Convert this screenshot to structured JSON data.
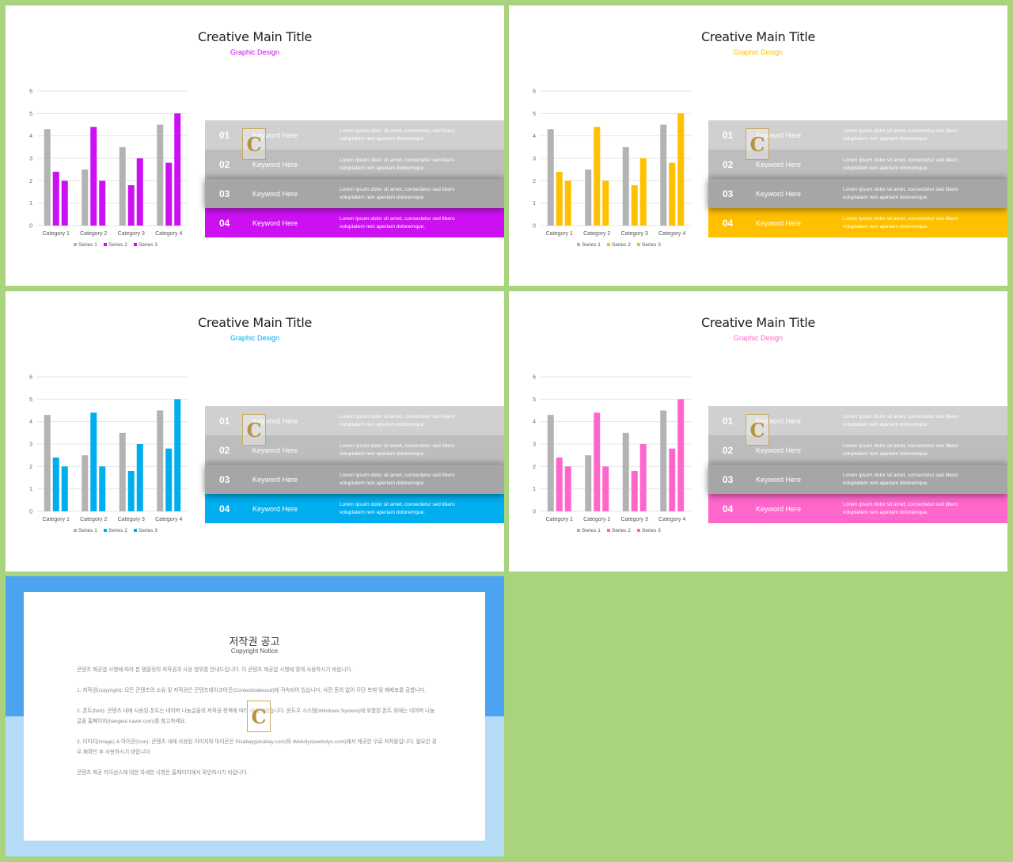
{
  "slides": [
    {
      "title": "Creative Main Title",
      "subtitle": "Graphic Design",
      "accent": "#cc10f2",
      "bands": [
        {
          "num": "01",
          "keyword": "Keyword Here",
          "desc1": "Lorem ipsum dolor sit amet, consectetur sed libero",
          "desc2": "voluptatem rem aperiam doloremque."
        },
        {
          "num": "02",
          "keyword": "Keyword Here",
          "desc1": "Lorem ipsum dolor sit amet, consectetur sed libero",
          "desc2": "voluptatem rem aperiam doloremque."
        },
        {
          "num": "03",
          "keyword": "Keyword Here",
          "desc1": "Lorem ipsum dolor sit amet, consectetur sed libero",
          "desc2": "voluptatem rem aperiam doloremque."
        },
        {
          "num": "04",
          "keyword": "Keyword Here",
          "desc1": "Lorem ipsum dolor sit amet, consectetur sed libero",
          "desc2": "voluptatem rem aperiam doloremque."
        }
      ]
    },
    {
      "title": "Creative Main Title",
      "subtitle": "Graphic Design",
      "accent": "#ffc000",
      "bands": [
        {
          "num": "01",
          "keyword": "Keyword Here",
          "desc1": "Lorem ipsum dolor sit amet, consectetur sed libero",
          "desc2": "voluptatem rem aperiam doloremque."
        },
        {
          "num": "02",
          "keyword": "Keyword Here",
          "desc1": "Lorem ipsum dolor sit amet, consectetur sed libero",
          "desc2": "voluptatem rem aperiam doloremque."
        },
        {
          "num": "03",
          "keyword": "Keyword Here",
          "desc1": "Lorem ipsum dolor sit amet, consectetur sed libero",
          "desc2": "voluptatem rem aperiam doloremque."
        },
        {
          "num": "04",
          "keyword": "Keyword Here",
          "desc1": "Lorem ipsum dolor sit amet, consectetur sed libero",
          "desc2": "voluptatem rem aperiam doloremque."
        }
      ]
    },
    {
      "title": "Creative Main Title",
      "subtitle": "Graphic Design",
      "accent": "#00aeef",
      "bands": [
        {
          "num": "01",
          "keyword": "Keyword Here",
          "desc1": "Lorem ipsum dolor sit amet, consectetur sed libero",
          "desc2": "voluptatem rem aperiam doloremque."
        },
        {
          "num": "02",
          "keyword": "Keyword Here",
          "desc1": "Lorem ipsum dolor sit amet, consectetur sed libero",
          "desc2": "voluptatem rem aperiam doloremque."
        },
        {
          "num": "03",
          "keyword": "Keyword Here",
          "desc1": "Lorem ipsum dolor sit amet, consectetur sed libero",
          "desc2": "voluptatem rem aperiam doloremque."
        },
        {
          "num": "04",
          "keyword": "Keyword Here",
          "desc1": "Lorem ipsum dolor sit amet, consectetur sed libero",
          "desc2": "voluptatem rem aperiam doloremque."
        }
      ]
    },
    {
      "title": "Creative Main Title",
      "subtitle": "Graphic Design",
      "accent": "#ff66cc",
      "bands": [
        {
          "num": "01",
          "keyword": "Keyword Here",
          "desc1": "Lorem ipsum dolor sit amet, consectetur sed libero",
          "desc2": "voluptatem rem aperiam doloremque."
        },
        {
          "num": "02",
          "keyword": "Keyword Here",
          "desc1": "Lorem ipsum dolor sit amet, consectetur sed libero",
          "desc2": "voluptatem rem aperiam doloremque."
        },
        {
          "num": "03",
          "keyword": "Keyword Here",
          "desc1": "Lorem ipsum dolor sit amet, consectetur sed libero",
          "desc2": "voluptatem rem aperiam doloremque."
        },
        {
          "num": "04",
          "keyword": "Keyword Here",
          "desc1": "Lorem ipsum dolor sit amet, consectetur sed libero",
          "desc2": "voluptatem rem aperiam doloremque."
        }
      ]
    }
  ],
  "band_colors": [
    "#d0d0d0",
    "#bdbdbd",
    "#a6a6a6"
  ],
  "watermark": {
    "letter": "C"
  },
  "chart_data": {
    "type": "bar",
    "categories": [
      "Category 1",
      "Category 2",
      "Category 3",
      "Category 4"
    ],
    "series": [
      {
        "name": "Series 1",
        "values": [
          4.3,
          2.5,
          3.5,
          4.5
        ]
      },
      {
        "name": "Series 2",
        "values": [
          2.4,
          4.4,
          1.8,
          2.8
        ]
      },
      {
        "name": "Series 3",
        "values": [
          2.0,
          2.0,
          3.0,
          5.0
        ]
      }
    ],
    "ylim": [
      0,
      6
    ],
    "yticks": [
      "0",
      "1",
      "2",
      "3",
      "4",
      "5",
      "6"
    ],
    "series1_color": "#b3b3b3",
    "legend": "bottom"
  },
  "notice": {
    "title": "저작권 공고",
    "subtitle": "Copyright Notice",
    "paragraphs": [
      "콘텐츠 제공업 시행에 따라 본 템플릿의 저작권과 사용 범위를 안내드립니다. 이 콘텐츠 제공업 시행에 맞게 사용하시기 바랍니다.",
      "1. 저작권(copyright): 모든 콘텐츠의 소유 및 저작권은 콘텐츠테이크아웃(Contentstakeout)에 귀속되어 있습니다. 사전 동의 없이 무단 복제 및 재배포를 금합니다.",
      "2. 폰트(font): 콘텐츠 내에 사용된 폰트는 네이버 나눔글꼴의 저작권 정책에 따라 사용되었습니다. 윈도우 시스템(Windows System)에 포함된 폰트 외에는 네이버 나눔글꼴 홈페이지(hangeul.naver.com)를 참고하세요.",
      "3. 이미지(image) & 아이콘(icon): 콘텐츠 내에 사용된 이미지와 아이콘은 Pixabay(pixabay.com)와 Webolys(webolys.com)에서 제공한 무료 저작물입니다. 필요한 경우 재확인 후 사용하시기 바랍니다.",
      "콘텐츠 제공 라이선스에 대한 자세한 사항은 홈페이지에서 확인하시기 바랍니다."
    ]
  }
}
